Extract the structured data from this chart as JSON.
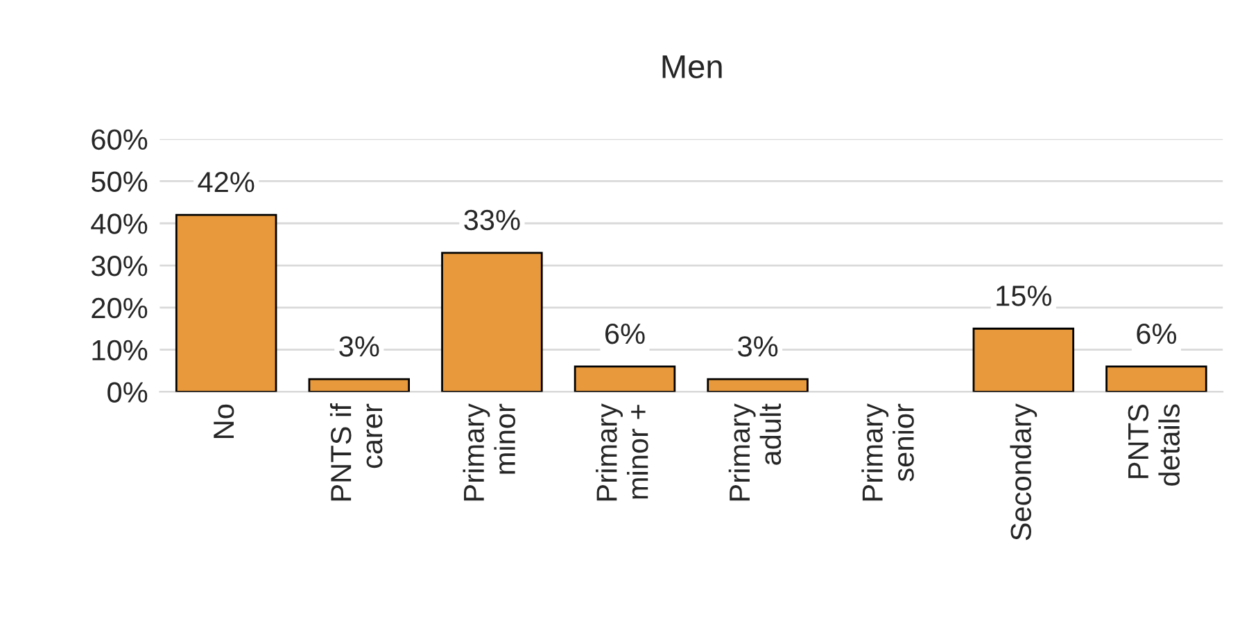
{
  "chart_data": {
    "type": "bar",
    "title": "Men",
    "categories": [
      "No",
      "PNTS if\ncarer",
      "Primary\nminor",
      "Primary\nminor +",
      "Primary\nadult",
      "Primary\nsenior",
      "Secondary",
      "PNTS\ndetails"
    ],
    "values": [
      42,
      3,
      33,
      6,
      3,
      null,
      15,
      6
    ],
    "value_labels": [
      "42%",
      "3%",
      "33%",
      "6%",
      "3%",
      null,
      "15%",
      "6%"
    ],
    "color": "#e8993b",
    "ylim": [
      0,
      60
    ],
    "yticks": [
      {
        "value": 0,
        "label": "0%"
      },
      {
        "value": 10,
        "label": "10%"
      },
      {
        "value": 20,
        "label": "20%"
      },
      {
        "value": 30,
        "label": "30%"
      },
      {
        "value": 40,
        "label": "40%"
      },
      {
        "value": 50,
        "label": "50%"
      },
      {
        "value": 60,
        "label": "60%"
      }
    ],
    "grid": "y",
    "legend": false
  }
}
